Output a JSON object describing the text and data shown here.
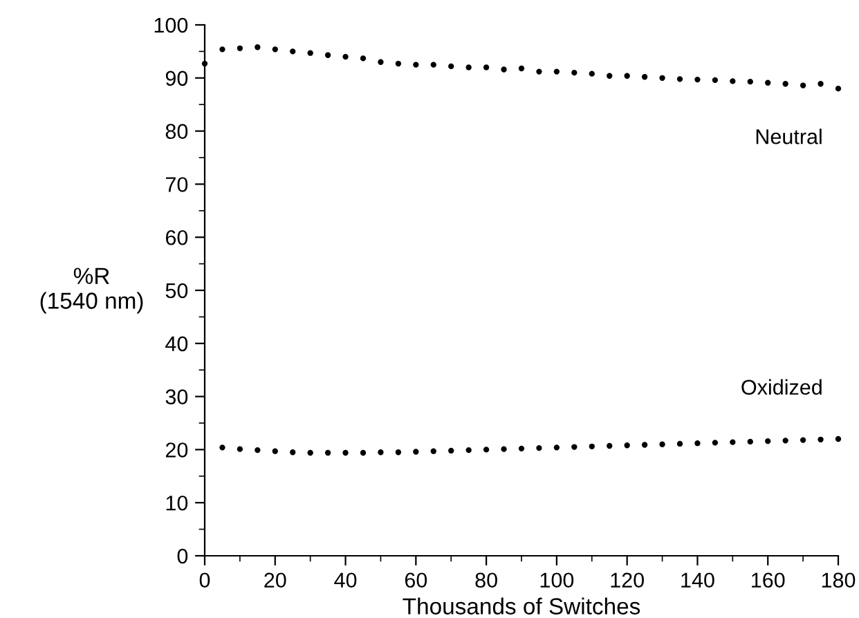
{
  "chart_data": {
    "type": "scatter",
    "xlabel": "Thousands of Switches",
    "ylabel": "%R\n(1540 nm)",
    "xlim": [
      0,
      180
    ],
    "xticks": [
      0,
      20,
      40,
      60,
      80,
      100,
      120,
      140,
      160,
      180
    ],
    "ylim": [
      0,
      100
    ],
    "yticks": [
      0,
      10,
      20,
      30,
      40,
      50,
      60,
      70,
      80,
      90,
      100
    ],
    "marker": "circle",
    "grid": false,
    "legend": false,
    "series": [
      {
        "name": "Neutral",
        "color": "#000000",
        "x": [
          0,
          5,
          10,
          15,
          20,
          25,
          30,
          35,
          40,
          45,
          50,
          55,
          60,
          65,
          70,
          75,
          80,
          85,
          90,
          95,
          100,
          105,
          110,
          115,
          120,
          125,
          130,
          135,
          140,
          145,
          150,
          155,
          160,
          165,
          170,
          175,
          180
        ],
        "values": [
          92.7,
          95.4,
          95.6,
          95.8,
          95.4,
          95.0,
          94.7,
          94.3,
          94.0,
          93.7,
          93.0,
          92.7,
          92.5,
          92.5,
          92.2,
          92.0,
          92.0,
          91.6,
          91.8,
          91.2,
          91.2,
          91.0,
          90.8,
          90.4,
          90.4,
          90.2,
          90.0,
          89.8,
          89.7,
          89.6,
          89.4,
          89.3,
          89.1,
          88.9,
          88.6,
          88.9,
          88.0
        ]
      },
      {
        "name": "Oxidized",
        "color": "#000000",
        "x": [
          5,
          10,
          15,
          20,
          25,
          30,
          35,
          40,
          45,
          50,
          55,
          60,
          65,
          70,
          75,
          80,
          85,
          90,
          95,
          100,
          105,
          110,
          115,
          120,
          125,
          130,
          135,
          140,
          145,
          150,
          155,
          160,
          165,
          170,
          175,
          180
        ],
        "values": [
          20.4,
          20.1,
          19.9,
          19.7,
          19.5,
          19.4,
          19.4,
          19.4,
          19.4,
          19.5,
          19.5,
          19.6,
          19.7,
          19.8,
          19.9,
          20.0,
          20.1,
          20.2,
          20.3,
          20.4,
          20.5,
          20.6,
          20.7,
          20.8,
          20.9,
          21.0,
          21.1,
          21.2,
          21.3,
          21.4,
          21.5,
          21.6,
          21.7,
          21.8,
          21.9,
          22.0
        ]
      }
    ]
  }
}
